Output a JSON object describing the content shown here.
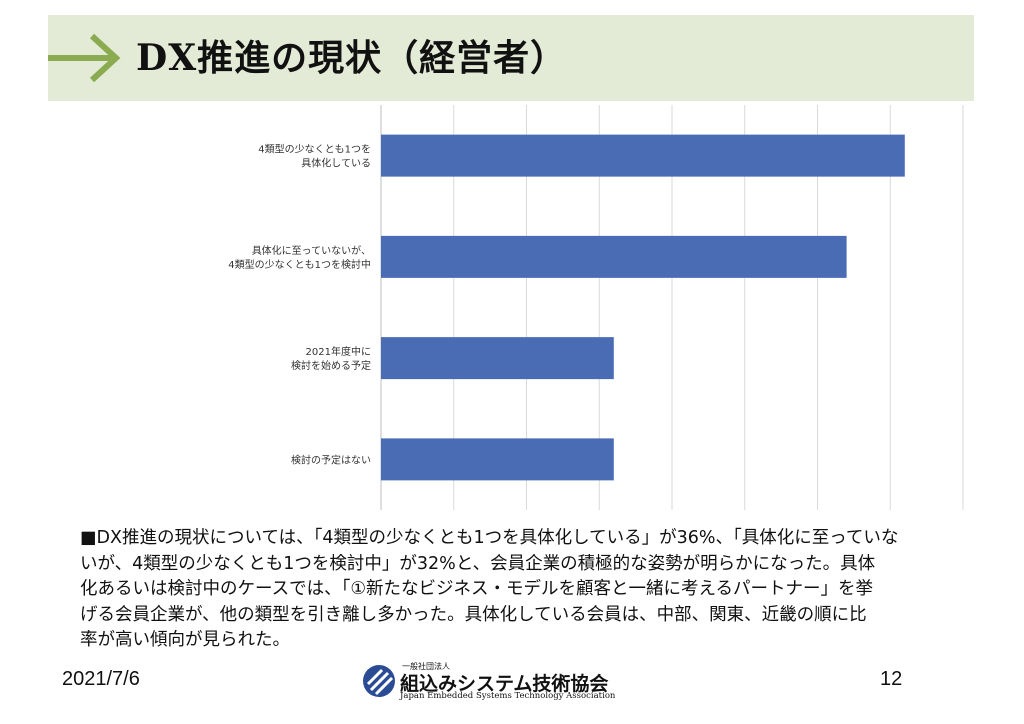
{
  "slide": {
    "title": "DX推進の現状（経営者）",
    "description": "■DX推進の現状については、「4類型の少なくとも1つを具体化している」が36%、「具体化に至っていな\nいが、4類型の少なくとも1つを検討中」が32%と、会員企業の積極的な姿勢が明らかになった。具体\n化あるいは検討中のケースでは、「①新たなビジネス・モデルを顧客と一緒に考えるパートナー」を挙\nげる会員企業が、他の類型を引き離し多かった。具体化している会員は、中部、関東、近畿の順に比\n率が高い傾向が見られた。",
    "date": "2021/7/6",
    "page_number": "12"
  },
  "logo": {
    "small_text": "一般社団法人",
    "name": "組込みシステム技術協会",
    "english": "Japan Embedded Systems Technology Association",
    "icon": "jasa-logo-icon"
  },
  "colors": {
    "header_bg": "#e3ebd6",
    "arrow": "#8aab4f",
    "bar": "#4a6cb5"
  },
  "chart_data": {
    "type": "bar",
    "orientation": "horizontal",
    "categories": [
      [
        "4類型の少なくとも1つを",
        "具体化している"
      ],
      [
        "具体化に至っていないが、",
        "4類型の少なくとも1つを検討中"
      ],
      [
        "2021年度中に",
        "検討を始める予定"
      ],
      [
        "検討の予定はない"
      ]
    ],
    "values": [
      36,
      32,
      16,
      16
    ],
    "xlim": [
      0,
      40
    ],
    "grid": true,
    "tick_labels_shown": false
  }
}
